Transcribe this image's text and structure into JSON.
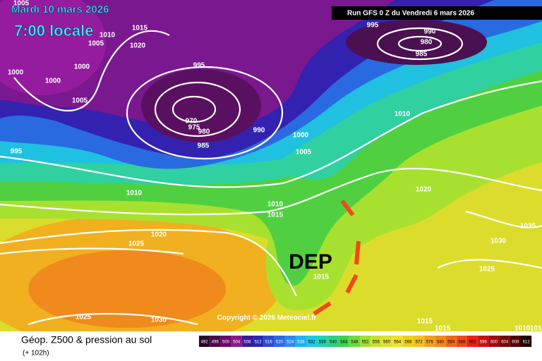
{
  "header": {
    "date": "Mardi 10 mars 2026",
    "time": "7:00 locale",
    "run": "Run GFS 0 Z du Vendredi 6 mars 2026"
  },
  "map": {
    "annotation": "DEP",
    "copyright": "Copyright © 2026 Meteociel.fr",
    "isobar_labels": [
      "1005",
      "1010",
      "1015",
      "1005",
      "1020",
      "1000",
      "1000",
      "1000",
      "1005",
      "995",
      "970",
      "975",
      "980",
      "985",
      "990",
      "995",
      "995",
      "990",
      "980",
      "985",
      "1010",
      "1000",
      "1005",
      "1010",
      "1010",
      "1015",
      "1020",
      "1020",
      "1025",
      "1035",
      "1030",
      "1025",
      "1015",
      "1025",
      "1030",
      "1015",
      "1015",
      "1010",
      "1010"
    ]
  },
  "footer": {
    "title": "Géop. Z500 & pression au sol",
    "subtitle": "(+ 102h)",
    "legend": [
      492,
      496,
      500,
      504,
      508,
      512,
      516,
      520,
      524,
      528,
      532,
      536,
      540,
      544,
      548,
      552,
      556,
      560,
      564,
      568,
      572,
      576,
      580,
      584,
      588,
      592,
      596,
      600,
      604,
      608,
      612
    ]
  }
}
